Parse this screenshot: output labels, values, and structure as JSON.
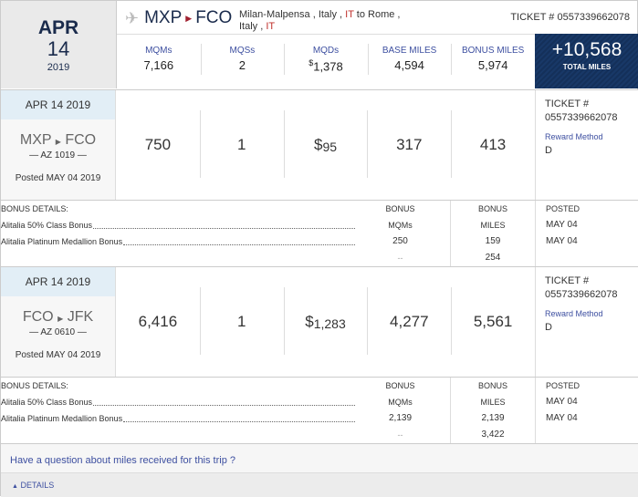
{
  "header": {
    "month": "APR",
    "day": "14",
    "year": "2019",
    "origin": "MXP",
    "destination": "FCO",
    "cities_line1": "Milan-Malpensa , Italy , ",
    "cities_it1": "IT",
    "cities_to": " to Rome ,",
    "cities_line2": "Italy , ",
    "cities_it2": "IT",
    "ticket": "TICKET # 0557339662078"
  },
  "metrics": [
    {
      "label": "MQMs",
      "value": "7,166"
    },
    {
      "label": "MQSs",
      "value": "2"
    },
    {
      "label": "MQDs",
      "currency": "$",
      "value": "1,378"
    },
    {
      "label": "BASE MILES",
      "value": "4,594"
    },
    {
      "label": "BONUS MILES",
      "value": "5,974"
    }
  ],
  "total": {
    "value": "+10,568",
    "label": "TOTAL MILES"
  },
  "segments": [
    {
      "date": "APR 14 2019",
      "origin": "MXP",
      "destination": "FCO",
      "flight": "— AZ 1019 —",
      "posted": "Posted MAY 04 2019",
      "mqm": "750",
      "mqs": "1",
      "mqd_currency": "$",
      "mqd": "95",
      "base": "317",
      "bonus": "413",
      "ticket_label": "TICKET #",
      "ticket": "0557339662078",
      "reward_label": "Reward Method",
      "reward": "D",
      "bonus_details": {
        "title": "BONUS DETAILS:",
        "items": [
          "Alitalia 50% Class Bonus",
          "Alitalia Platinum Medallion Bonus"
        ],
        "mqm_header": [
          "BONUS",
          "MQMs"
        ],
        "mqm_values": [
          "250",
          "--"
        ],
        "miles_header": [
          "BONUS",
          "MILES"
        ],
        "miles_values": [
          "159",
          "254"
        ],
        "posted_header": "POSTED",
        "posted_values": [
          "MAY 04",
          "MAY 04"
        ]
      }
    },
    {
      "date": "APR 14 2019",
      "origin": "FCO",
      "destination": "JFK",
      "flight": "— AZ 0610 —",
      "posted": "Posted MAY 04 2019",
      "mqm": "6,416",
      "mqs": "1",
      "mqd_currency": "$",
      "mqd": "1,283",
      "base": "4,277",
      "bonus": "5,561",
      "ticket_label": "TICKET #",
      "ticket": "0557339662078",
      "reward_label": "Reward Method",
      "reward": "D",
      "bonus_details": {
        "title": "BONUS DETAILS:",
        "items": [
          "Alitalia 50% Class Bonus",
          "Alitalia Platinum Medallion Bonus"
        ],
        "mqm_header": [
          "BONUS",
          "MQMs"
        ],
        "mqm_values": [
          "2,139",
          "--"
        ],
        "miles_header": [
          "BONUS",
          "MILES"
        ],
        "miles_values": [
          "2,139",
          "3,422"
        ],
        "posted_header": "POSTED",
        "posted_values": [
          "MAY 04",
          "MAY 04"
        ]
      }
    }
  ],
  "question_link": "Have a question about miles received for this trip ?",
  "details_toggle": "DETAILS"
}
